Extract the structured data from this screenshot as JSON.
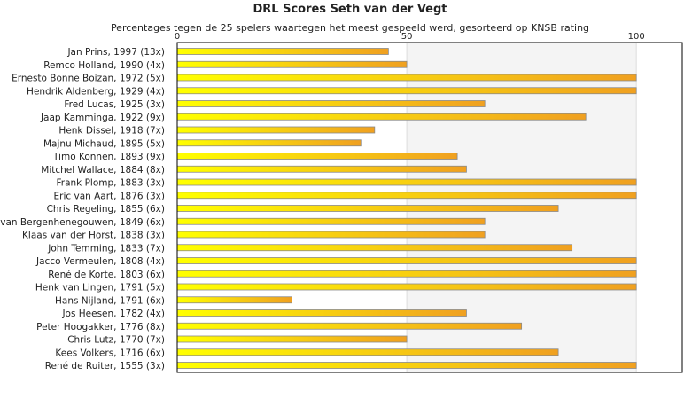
{
  "chart_data": {
    "type": "bar",
    "orientation": "horizontal",
    "title": "DRL Scores Seth van der Vegt",
    "subtitle": "Percentages tegen de 25 spelers waartegen het meest gespeeld werd, gesorteerd op KNSB rating",
    "xlim": [
      0,
      110
    ],
    "xticks": [
      0,
      50,
      100
    ],
    "grid": true,
    "legend": "none",
    "categories": [
      "Jan Prins, 1997 (13x)",
      "Remco Holland, 1990 (4x)",
      "Ernesto Bonne Boizan, 1972 (5x)",
      "Hendrik Aldenberg, 1929 (4x)",
      "Fred Lucas, 1925 (3x)",
      "Jaap Kamminga, 1922 (9x)",
      "Henk Dissel, 1918 (7x)",
      "Majnu Michaud, 1895 (5x)",
      "Timo Können, 1893 (9x)",
      "Mitchel Wallace, 1884 (8x)",
      "Frank Plomp, 1883 (3x)",
      "Eric van Aart, 1876 (3x)",
      "Chris Regeling, 1855 (6x)",
      "van Bergenhenegouwen, 1849 (6x)",
      "Klaas van der Horst, 1838 (3x)",
      "John Temming, 1833 (7x)",
      "Jacco Vermeulen, 1808 (4x)",
      "René de Korte, 1803 (6x)",
      "Henk van Lingen, 1791 (5x)",
      "Hans Nijland, 1791 (6x)",
      "Jos Heesen, 1782 (4x)",
      "Peter Hoogakker, 1776 (8x)",
      "Chris Lutz, 1770 (7x)",
      "Kees Volkers, 1716 (6x)",
      "René de Ruiter, 1555 (3x)"
    ],
    "values": [
      46,
      50,
      100,
      100,
      67,
      89,
      43,
      40,
      61,
      63,
      100,
      100,
      83,
      67,
      67,
      86,
      100,
      100,
      100,
      25,
      63,
      75,
      50,
      83,
      100
    ],
    "colors": {
      "bar_start": "#ffff00",
      "bar_end": "#f0a020",
      "bar_edge": "#8a8a8a",
      "plot_bg": "#f4f4f4",
      "plot_bg_light": "#ffffff",
      "grid": "#dddddd",
      "axis": "#000000"
    }
  }
}
